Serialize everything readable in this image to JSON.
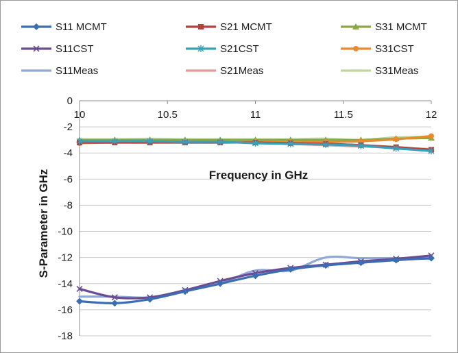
{
  "chart_data": {
    "type": "line",
    "title": "",
    "xlabel": "Frequency in GHz",
    "ylabel": "S-Parameter in GHz",
    "xlim": [
      10,
      12
    ],
    "ylim": [
      -18,
      0
    ],
    "x_ticks": [
      "10",
      "10.5",
      "11",
      "11.5",
      "12"
    ],
    "y_ticks": [
      "0",
      "-2",
      "-4",
      "-6",
      "-8",
      "-10",
      "-12",
      "-14",
      "-16",
      "-18"
    ],
    "x_tick_values": [
      10,
      10.5,
      11,
      11.5,
      12
    ],
    "y_tick_values": [
      0,
      -2,
      -4,
      -6,
      -8,
      -10,
      -12,
      -14,
      -16,
      -18
    ],
    "grid": "horizontal",
    "legend_position": "top",
    "x": [
      10,
      10.2,
      10.4,
      10.6,
      10.8,
      11,
      11.2,
      11.4,
      11.6,
      11.8,
      12
    ],
    "series": [
      {
        "name": "S11 MCMT",
        "color": "#3b6db3",
        "marker": "diamond",
        "values": [
          -15.35,
          -15.5,
          -15.2,
          -14.6,
          -14.0,
          -13.4,
          -12.9,
          -12.6,
          -12.4,
          -12.2,
          -12.05
        ]
      },
      {
        "name": "S21 MCMT",
        "color": "#b5413c",
        "marker": "square",
        "values": [
          -3.2,
          -3.2,
          -3.2,
          -3.2,
          -3.2,
          -3.2,
          -3.25,
          -3.3,
          -3.4,
          -3.55,
          -3.75
        ]
      },
      {
        "name": "S31 MCMT",
        "color": "#8aa84a",
        "marker": "triangle",
        "values": [
          -3.0,
          -3.0,
          -3.0,
          -3.0,
          -3.0,
          -3.0,
          -3.0,
          -3.0,
          -3.0,
          -2.9,
          -2.85
        ]
      },
      {
        "name": "S11CST",
        "color": "#6b4c93",
        "marker": "x",
        "values": [
          -14.4,
          -15.05,
          -15.05,
          -14.5,
          -13.8,
          -13.2,
          -12.8,
          -12.55,
          -12.3,
          -12.1,
          -11.85
        ]
      },
      {
        "name": "S21CST",
        "color": "#3aa0b8",
        "marker": "star",
        "values": [
          -3.1,
          -3.1,
          -3.1,
          -3.15,
          -3.15,
          -3.25,
          -3.3,
          -3.35,
          -3.45,
          -3.65,
          -3.85
        ]
      },
      {
        "name": "S31CST",
        "color": "#ea8a2f",
        "marker": "circle",
        "values": [
          -3.25,
          -3.2,
          -3.2,
          -3.15,
          -3.15,
          -3.15,
          -3.15,
          -3.15,
          -3.1,
          -2.95,
          -2.7
        ]
      },
      {
        "name": "S11Meas",
        "color": "#8fa8d8",
        "marker": "none",
        "values": [
          -15.0,
          -15.0,
          -15.05,
          -14.55,
          -14.0,
          -13.0,
          -13.0,
          -12.0,
          -12.05,
          -12.05,
          -12.1
        ]
      },
      {
        "name": "S21Meas",
        "color": "#e49a97",
        "marker": "none",
        "values": [
          -3.0,
          -3.0,
          -3.1,
          -3.1,
          -3.1,
          -3.15,
          -3.3,
          -3.4,
          -3.5,
          -3.6,
          -3.7
        ]
      },
      {
        "name": "S31Meas",
        "color": "#bcd89a",
        "marker": "none",
        "values": [
          -2.95,
          -2.95,
          -2.9,
          -2.95,
          -2.95,
          -2.95,
          -2.95,
          -2.9,
          -3.0,
          -2.8,
          -2.75
        ]
      }
    ]
  }
}
